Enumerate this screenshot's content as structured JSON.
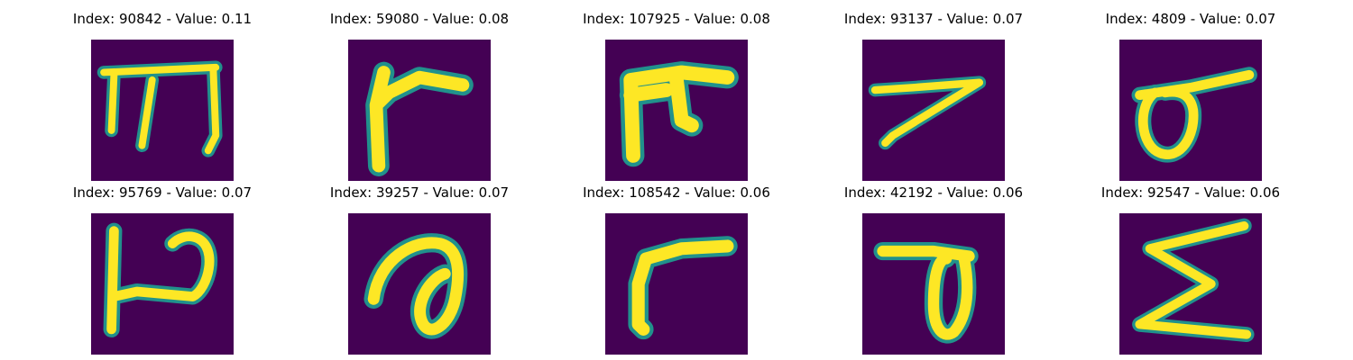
{
  "panels": [
    {
      "title": "Index: 90842 - Value: 0.11",
      "glyph": "glyph-90842"
    },
    {
      "title": "Index: 59080 - Value: 0.08",
      "glyph": "glyph-59080"
    },
    {
      "title": "Index: 107925 - Value: 0.08",
      "glyph": "glyph-107925"
    },
    {
      "title": "Index: 93137 - Value: 0.07",
      "glyph": "glyph-93137"
    },
    {
      "title": "Index: 4809 - Value: 0.07",
      "glyph": "glyph-4809"
    },
    {
      "title": "Index: 95769 - Value: 0.07",
      "glyph": "glyph-95769"
    },
    {
      "title": "Index: 39257 - Value: 0.07",
      "glyph": "glyph-39257"
    },
    {
      "title": "Index: 108542 - Value: 0.06",
      "glyph": "glyph-108542"
    },
    {
      "title": "Index: 42192 - Value: 0.06",
      "glyph": "glyph-42192"
    },
    {
      "title": "Index: 92547 - Value: 0.06",
      "glyph": "glyph-92547"
    }
  ],
  "colors": {
    "background": "#440154",
    "stroke_edge": "#21918c",
    "stroke_core": "#fde725",
    "title_text": "#000000"
  }
}
